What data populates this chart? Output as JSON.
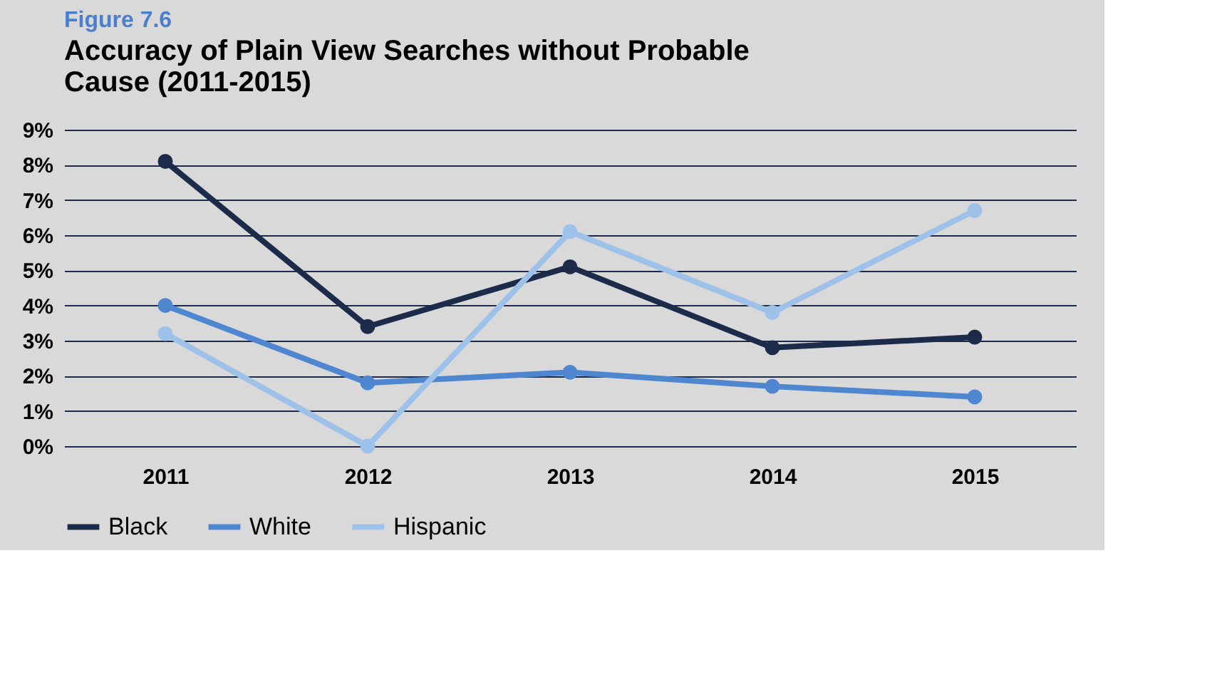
{
  "chart_data": {
    "type": "line",
    "title": "Figure 7.6",
    "subtitle": "Accuracy of Plain View Searches without Probable Cause (2011-2015)",
    "categories": [
      "2011",
      "2012",
      "2013",
      "2014",
      "2015"
    ],
    "series": [
      {
        "name": "Black",
        "color": "#1c2b4a",
        "values": [
          8.1,
          3.4,
          5.1,
          2.8,
          3.1
        ]
      },
      {
        "name": "White",
        "color": "#4f86d0",
        "values": [
          4.0,
          1.8,
          2.1,
          1.7,
          1.4
        ]
      },
      {
        "name": "Hispanic",
        "color": "#9ec1ea",
        "values": [
          3.2,
          0.0,
          6.1,
          3.8,
          6.7
        ]
      }
    ],
    "ylim": [
      0,
      9
    ],
    "yticks": [
      {
        "value": 0,
        "label": "0%"
      },
      {
        "value": 1,
        "label": "1%"
      },
      {
        "value": 2,
        "label": "2%"
      },
      {
        "value": 3,
        "label": "3%"
      },
      {
        "value": 4,
        "label": "4%"
      },
      {
        "value": 5,
        "label": "5%"
      },
      {
        "value": 6,
        "label": "6%"
      },
      {
        "value": 7,
        "label": "7%"
      },
      {
        "value": 8,
        "label": "8%"
      },
      {
        "value": 9,
        "label": "9%"
      }
    ],
    "grid": "y",
    "legend": "bottom",
    "marker": "circle",
    "line_style": "solid"
  }
}
